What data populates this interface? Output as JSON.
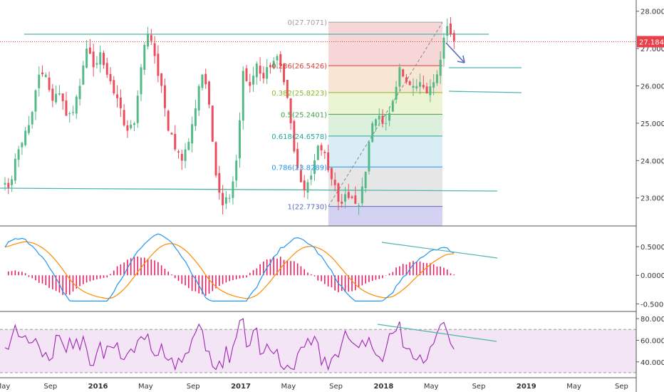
{
  "chart_data": {
    "type": "candlestick",
    "price_axis": {
      "ticks": [
        "28.0000",
        "27.0000",
        "26.0000",
        "25.0000",
        "24.0000",
        "23.0000"
      ],
      "tick_values": [
        28.0,
        27.0,
        26.0,
        25.0,
        24.0,
        23.0
      ],
      "ylim": [
        22.25,
        28.3
      ]
    },
    "last_price": {
      "label": "27.1844",
      "value": 27.1844,
      "color": "#e8414a"
    },
    "fib_levels": [
      {
        "label": "0(27.7071)",
        "value": 27.7071,
        "color": "#9e9e9e"
      },
      {
        "label": "0.236(26.5426)",
        "value": 26.5426,
        "color": "#e53935"
      },
      {
        "label": "0.382(25.8223)",
        "value": 25.8223,
        "color": "#8bb822"
      },
      {
        "label": "0.5(25.2401)",
        "value": 25.2401,
        "color": "#43a047"
      },
      {
        "label": "0.618(24.6578)",
        "value": 24.6578,
        "color": "#26a69a"
      },
      {
        "label": "0.786(23.8289)",
        "value": 23.8289,
        "color": "#2196f3"
      },
      {
        "label": "1(22.7730)",
        "value": 22.773,
        "color": "#5c6bc0"
      }
    ],
    "x_axis": {
      "labels": [
        "May",
        "Sep",
        "2016",
        "May",
        "Sep",
        "2017",
        "May",
        "Sep",
        "2018",
        "May",
        "Sep",
        "2019",
        "May",
        "Sep"
      ],
      "bold": [
        false,
        false,
        true,
        false,
        false,
        true,
        false,
        false,
        true,
        false,
        false,
        true,
        false,
        false
      ]
    },
    "macd_panel": {
      "ticks": [
        "0.5000",
        "0.0000",
        "-0.5000"
      ],
      "tick_values": [
        0.5,
        0.0,
        -0.5
      ],
      "ylim": [
        -0.62,
        0.85
      ],
      "line_color": "#2196f3",
      "signal_color": "#ff8a00",
      "hist_color": "#e91e63"
    },
    "rsi_panel": {
      "ticks": [
        "80.0000",
        "60.0000",
        "40.0000"
      ],
      "tick_values": [
        80,
        60,
        40
      ],
      "ylim": [
        26,
        86
      ],
      "upper_band": 70,
      "lower_band": 30,
      "line_color": "#9c27b0",
      "band_fill": "#f3e5f5"
    },
    "colors": {
      "up": "#53b987",
      "down": "#eb4d5c",
      "trend_line": "#4db6ac"
    },
    "series": {
      "base_price": [
        23.4,
        23.5,
        24.3,
        24.8,
        25.3,
        26.3,
        26.3,
        25.6,
        25.8,
        25.2,
        25.3,
        26.0,
        27.0,
        26.5,
        26.9,
        26.3,
        25.8,
        25.4,
        24.8,
        25.0,
        26.5,
        27.4,
        26.8,
        26.0,
        24.8,
        24.3,
        24.0,
        24.5,
        25.4,
        26.3,
        25.5,
        23.6,
        22.8,
        23.0,
        24.0,
        26.4,
        26.0,
        26.6,
        26.2,
        26.5,
        26.8,
        26.1,
        25.0,
        23.8,
        23.2,
        23.6,
        24.4,
        24.2,
        23.5,
        22.9,
        23.1,
        23.0,
        22.8,
        23.7,
        25.0,
        25.2,
        25.0,
        25.6,
        26.5,
        26.1,
        26.0,
        26.1,
        25.8,
        26.1,
        26.7,
        27.6,
        27.2
      ]
    }
  }
}
